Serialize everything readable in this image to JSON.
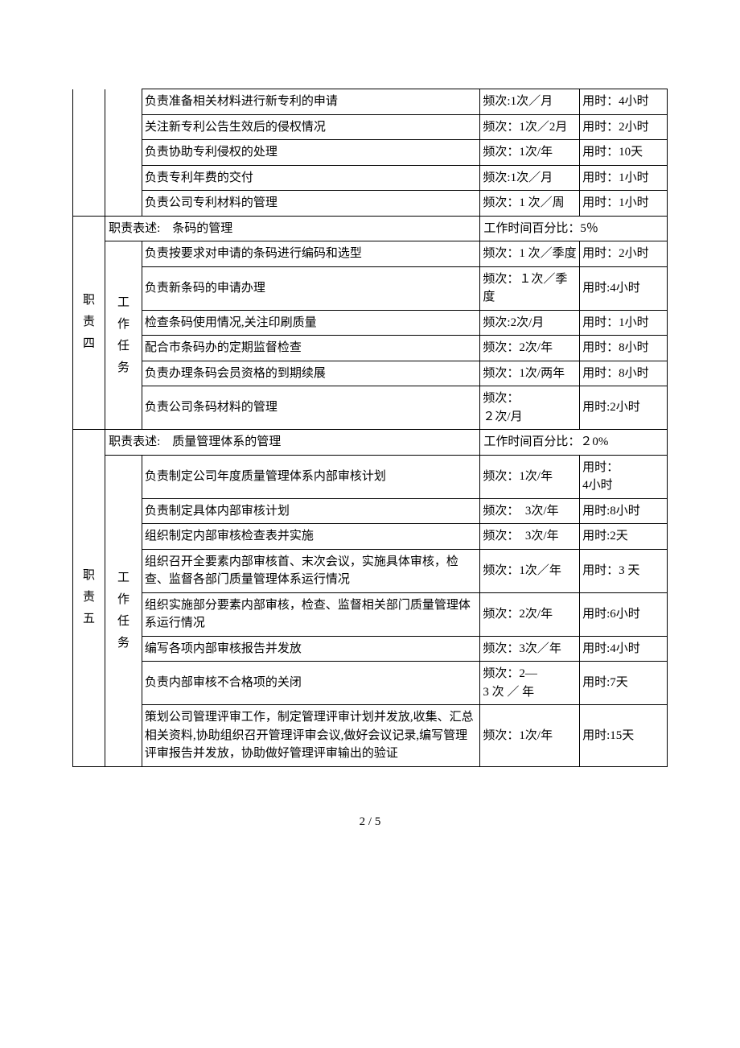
{
  "footer": "2 / 5",
  "section_top": {
    "rows": [
      {
        "task": "负责准备相关材料进行新专利的申请",
        "freq": "频次:1次／月",
        "time": "用时：4小时"
      },
      {
        "task": "关注新专利公告生效后的侵权情况",
        "freq": "频次：1次／2月",
        "time": "用时：2小时"
      },
      {
        "task": "负责协助专利侵权的处理",
        "freq": "频次：1次/年",
        "time": "用时：10天"
      },
      {
        "task": "负责专利年费的交付",
        "freq": "频次:1次／月",
        "time": "用时：1小时"
      },
      {
        "task": "负责公司专利材料的管理",
        "freq": "频次：1 次／周",
        "time": "用时：1小时"
      }
    ]
  },
  "section4": {
    "label": "职责四",
    "work_label": "工作任务",
    "header_left": "职责表述:　条码的管理",
    "header_right": "工作时间百分比：5％",
    "rows": [
      {
        "task": "负责按要求对申请的条码进行编码和选型",
        "freq": "频次：1 次／季度",
        "time": "用时：2小时"
      },
      {
        "task": "负责新条码的申请办理",
        "freq": "频次：１次／季度",
        "time": "用时:4小时"
      },
      {
        "task": "检查条码使用情况,关注印刷质量",
        "freq": "频次:2次/月",
        "time": "用时：1小时"
      },
      {
        "task": "配合市条码办的定期监督检查",
        "freq": "频次：2次/年",
        "time": "用时：8小时"
      },
      {
        "task": "负责办理条码会员资格的到期续展",
        "freq": "频次：1次/两年",
        "time": "用时：8小时"
      },
      {
        "task": "负责公司条码材料的管理",
        "freq": "频次：\n２次/月",
        "time": "用时:2小时"
      }
    ]
  },
  "section5": {
    "label": "职责五",
    "work_label": "工作任务",
    "header_left": "职责表述:　质量管理体系的管理",
    "header_right": "工作时间百分比：２0%",
    "rows": [
      {
        "task": "负责制定公司年度质量管理体系内部审核计划",
        "freq": "频次：1次/年",
        "time": "用时：\n4小时"
      },
      {
        "task": "负责制定具体内部审核计划",
        "freq": "频次：　3次/年",
        "time": "用时:8小时"
      },
      {
        "task": "组织制定内部审核检查表并实施",
        "freq": "频次：　3次/年",
        "time": "用时:2天"
      },
      {
        "task": "组织召开全要素内部审核首、末次会议，实施具体审核，检查、监督各部门质量管理体系运行情况",
        "freq": "频次：1次／年",
        "time": "用时：3 天"
      },
      {
        "task": "组织实施部分要素内部审核，检查、监督相关部门质量管理体系运行情况",
        "freq": "频次：2次/年",
        "time": "用时:6小时"
      },
      {
        "task": "编写各项内部审核报告并发放",
        "freq": "频次：3次／年",
        "time": "用时:4小时"
      },
      {
        "task": "负责内部审核不合格项的关闭",
        "freq": "频次：2—\n3 次 ／ 年",
        "time": "用时:7天"
      },
      {
        "task": "策划公司管理评审工作，制定管理评审计划并发放,收集、汇总相关资料,协助组织召开管理评审会议,做好会议记录,编写管理评审报告并发放，协助做好管理评审输出的验证",
        "freq": "频次：1次/年",
        "time": "用时:15天"
      }
    ]
  }
}
